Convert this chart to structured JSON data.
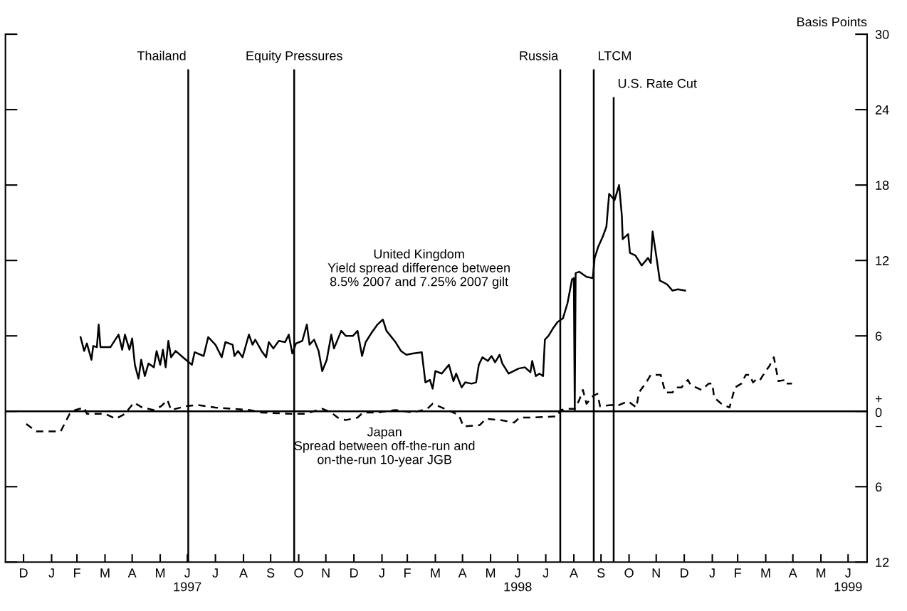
{
  "chart_data": {
    "type": "line",
    "ylabel": "Basis Points",
    "annotations": [
      "United Kingdom\nYield spread difference between\n8.5% 2007 and 7.25% 2007 gilt",
      "Japan\nSpread between off-the-run and\non-the-run 10-year JGB"
    ],
    "series": [
      {
        "color": "#000000",
        "line_style": "solid",
        "x": [
          "1997-03-05",
          "1997-03-09",
          "1997-03-12",
          "1997-03-17",
          "1997-03-19",
          "1997-03-23",
          "1997-03-25",
          "1997-03-27",
          "1997-04-07",
          "1997-04-16",
          "1997-04-20",
          "1997-04-23",
          "1997-04-28",
          "1997-05-01",
          "1997-05-04",
          "1997-05-08",
          "1997-05-11",
          "1997-05-15",
          "1997-05-19",
          "1997-05-25",
          "1997-05-28",
          "1997-06-01",
          "1997-06-04",
          "1997-06-07",
          "1997-06-10",
          "1997-06-13",
          "1997-06-18",
          "1997-06-26",
          "1997-07-06",
          "1997-07-09",
          "1997-07-19",
          "1997-07-24",
          "1997-08-01",
          "1997-08-08",
          "1997-08-12",
          "1997-08-20",
          "1997-08-22",
          "1997-08-26",
          "1997-08-31",
          "1997-09-07",
          "1997-09-11",
          "1997-09-14",
          "1997-09-21",
          "1997-09-26",
          "1997-09-29",
          "1997-10-04",
          "1997-10-10",
          "1997-10-17",
          "1997-10-21",
          "1997-10-25",
          "1997-10-29",
          "1997-11-05",
          "1997-11-10",
          "1997-11-13",
          "1997-11-18",
          "1997-11-23",
          "1997-11-27",
          "1997-12-02",
          "1997-12-07",
          "1997-12-10",
          "1997-12-18",
          "1997-12-23",
          "1997-12-31",
          "1998-01-05",
          "1998-01-10",
          "1998-01-14",
          "1998-01-21",
          "1998-01-27",
          "1998-02-02",
          "1998-02-06",
          "1998-02-16",
          "1998-02-22",
          "1998-02-28",
          "1998-03-07",
          "1998-03-17",
          "1998-03-21",
          "1998-03-26",
          "1998-03-29",
          "1998-04-01",
          "1998-04-08",
          "1998-04-16",
          "1998-04-21",
          "1998-04-24",
          "1998-04-30",
          "1998-05-04",
          "1998-05-11",
          "1998-05-16",
          "1998-05-19",
          "1998-05-23",
          "1998-05-29",
          "1998-06-02",
          "1998-06-06",
          "1998-06-11",
          "1998-06-14",
          "1998-06-21",
          "1998-07-02",
          "1998-07-09",
          "1998-07-15",
          "1998-07-17",
          "1998-07-21",
          "1998-07-25",
          "1998-07-29",
          "1998-07-31",
          "1998-08-04",
          "1998-08-09",
          "1998-08-14",
          "1998-08-20",
          "1998-08-25",
          "1998-08-30",
          "1998-09-01",
          "1998-09-02",
          "1998-09-03",
          "1998-09-07",
          "1998-09-15",
          "1998-09-22",
          "1998-09-24",
          "1998-09-28",
          "1998-10-03",
          "1998-10-07",
          "1998-10-10",
          "1998-10-16",
          "1998-10-21",
          "1998-10-24",
          "1998-10-25",
          "1998-10-31",
          "1998-11-02",
          "1998-11-08",
          "1998-11-15",
          "1998-11-22",
          "1998-11-25",
          "1998-11-27",
          "1998-12-01",
          "1998-12-05",
          "1998-12-13",
          "1998-12-19",
          "1998-12-25",
          "1999-01-02"
        ],
        "values": [
          5.9,
          4.8,
          5.4,
          4.1,
          5.2,
          5.1,
          6.9,
          5.1,
          5.1,
          6.1,
          4.9,
          6.1,
          4.9,
          5.8,
          3.7,
          2.6,
          4.1,
          2.8,
          3.8,
          3.5,
          4.8,
          3.7,
          4.9,
          3.5,
          5.6,
          4.3,
          4.8,
          4.3,
          3.7,
          4.7,
          4.4,
          5.9,
          5.3,
          4.3,
          5.5,
          5.3,
          4.4,
          4.8,
          4.3,
          6.1,
          5.3,
          5.7,
          4.8,
          4.3,
          5.5,
          5.0,
          5.6,
          5.5,
          6.1,
          4.6,
          5.4,
          5.6,
          6.9,
          5.3,
          5.7,
          4.8,
          3.2,
          4.1,
          6.1,
          5.0,
          6.4,
          6.0,
          6.0,
          6.4,
          4.4,
          5.5,
          6.3,
          6.9,
          7.3,
          6.4,
          5.5,
          4.8,
          4.5,
          4.6,
          4.7,
          2.3,
          2.5,
          1.8,
          3.2,
          3.0,
          3.7,
          2.4,
          3.0,
          1.9,
          2.3,
          2.2,
          2.3,
          3.7,
          4.3,
          4.0,
          4.4,
          3.9,
          4.5,
          3.8,
          3.0,
          3.4,
          3.5,
          3.1,
          4.0,
          2.8,
          3.0,
          2.8,
          5.7,
          6.0,
          6.6,
          7.1,
          7.4,
          8.6,
          10.5,
          10.6,
          0.1,
          11.0,
          11.1,
          10.7,
          10.6,
          12.2,
          13.1,
          13.9,
          14.7,
          17.3,
          16.8,
          18.0,
          15.6,
          13.7,
          14.1,
          12.6,
          12.4,
          11.6,
          12.2,
          11.8,
          14.3,
          12.4,
          10.4,
          10.1,
          9.6,
          9.7,
          9.6
        ]
      },
      {
        "color": "#000000",
        "line_style": "dashed",
        "x": [
          "1997-01-04",
          "1997-01-15",
          "1997-01-23",
          "1997-01-31",
          "1997-02-11",
          "1997-02-21",
          "1997-02-27",
          "1997-03-09",
          "1997-03-12",
          "1997-03-24",
          "1997-04-01",
          "1997-04-13",
          "1997-04-23",
          "1997-05-03",
          "1997-05-12",
          "1997-05-25",
          "1997-06-02",
          "1997-06-09",
          "1997-06-13",
          "1997-06-29",
          "1997-07-12",
          "1997-07-22",
          "1997-08-01",
          "1997-08-20",
          "1997-09-08",
          "1997-09-21",
          "1997-10-23",
          "1997-11-08",
          "1997-11-27",
          "1997-12-07",
          "1997-12-14",
          "1997-12-23",
          "1998-01-05",
          "1998-01-11",
          "1998-01-27",
          "1998-02-16",
          "1998-03-07",
          "1998-03-23",
          "1998-03-29",
          "1998-04-08",
          "1998-04-27",
          "1998-05-02",
          "1998-05-20",
          "1998-05-27",
          "1998-06-12",
          "1998-06-27",
          "1998-07-03",
          "1998-07-15",
          "1998-08-14",
          "1998-08-17",
          "1998-08-25",
          "1998-09-02",
          "1998-09-07",
          "1998-09-11",
          "1998-09-15",
          "1998-09-22",
          "1998-09-27",
          "1998-09-30",
          "1998-10-12",
          "1998-10-21",
          "1998-10-31",
          "1998-11-09",
          "1998-11-12",
          "1998-11-20",
          "1998-11-25",
          "1998-12-06",
          "1998-12-11",
          "1998-12-19",
          "1998-12-23",
          "1998-12-29",
          "1999-01-05",
          "1999-01-08",
          "1999-01-20",
          "1999-01-28",
          "1999-02-01",
          "1999-02-03",
          "1999-02-11",
          "1999-02-20",
          "1999-02-26",
          "1999-03-05",
          "1999-03-10",
          "1999-03-14",
          "1999-03-18",
          "1999-03-21",
          "1999-03-25",
          "1999-03-31",
          "1999-04-05",
          "1999-04-10",
          "1999-04-15",
          "1999-04-23",
          "1999-04-24",
          "1999-04-30"
        ],
        "values": [
          -1.0,
          -1.6,
          -1.6,
          -1.6,
          -1.6,
          -0.2,
          0.1,
          0.3,
          -0.2,
          -0.2,
          -0.2,
          -0.6,
          -0.2,
          0.7,
          0.3,
          0.1,
          0.4,
          0.9,
          0.1,
          0.4,
          0.5,
          0.4,
          0.3,
          0.2,
          0.1,
          -0.1,
          -0.2,
          -0.2,
          0.2,
          -0.1,
          -0.5,
          -0.7,
          -0.5,
          -0.1,
          -0.1,
          0.1,
          -0.1,
          0.2,
          0.6,
          0.3,
          -0.3,
          -1.2,
          -1.1,
          -0.6,
          -0.7,
          -0.9,
          -0.5,
          -0.5,
          -0.4,
          0.1,
          0.2,
          0.2,
          0.9,
          1.7,
          0.6,
          1.2,
          1.4,
          0.4,
          0.5,
          0.5,
          0.8,
          0.3,
          1.5,
          2.3,
          2.9,
          2.9,
          1.5,
          1.5,
          1.9,
          1.9,
          2.5,
          2.1,
          1.7,
          2.2,
          2.2,
          1.1,
          0.6,
          0.3,
          1.9,
          2.2,
          2.9,
          2.9,
          2.3,
          2.5,
          2.4,
          3.1,
          3.6,
          4.3,
          2.4,
          2.5,
          2.2,
          2.2
        ]
      }
    ],
    "xlim": [
      "1996-12-12",
      "1999-07-22"
    ],
    "xticks": [
      {
        "value": "1997-01-01",
        "label": "D"
      },
      {
        "value": "1997-02-01",
        "label": "J"
      },
      {
        "value": "1997-03-01",
        "label": "F"
      },
      {
        "value": "1997-04-01",
        "label": "M"
      },
      {
        "value": "1997-05-01",
        "label": "A"
      },
      {
        "value": "1997-06-01",
        "label": "M"
      },
      {
        "value": "1997-07-01",
        "label": "J\n1997"
      },
      {
        "value": "1997-08-01",
        "label": "J"
      },
      {
        "value": "1997-09-01",
        "label": "A"
      },
      {
        "value": "1997-10-01",
        "label": "S"
      },
      {
        "value": "1997-11-01",
        "label": "O"
      },
      {
        "value": "1997-12-01",
        "label": "N"
      },
      {
        "value": "1998-01-01",
        "label": "D"
      },
      {
        "value": "1998-02-01",
        "label": "J"
      },
      {
        "value": "1998-03-01",
        "label": "F"
      },
      {
        "value": "1998-04-01",
        "label": "M"
      },
      {
        "value": "1998-05-01",
        "label": "A"
      },
      {
        "value": "1998-06-01",
        "label": "M"
      },
      {
        "value": "1998-07-01",
        "label": "J\n1998"
      },
      {
        "value": "1998-08-01",
        "label": "J"
      },
      {
        "value": "1998-09-01",
        "label": "A"
      },
      {
        "value": "1998-10-01",
        "label": "S"
      },
      {
        "value": "1998-11-01",
        "label": "O"
      },
      {
        "value": "1998-12-01",
        "label": "N"
      },
      {
        "value": "1999-01-01",
        "label": "D"
      },
      {
        "value": "1999-02-01",
        "label": "J"
      },
      {
        "value": "1999-03-01",
        "label": "F"
      },
      {
        "value": "1999-04-01",
        "label": "M"
      },
      {
        "value": "1999-05-01",
        "label": "A"
      },
      {
        "value": "1999-06-01",
        "label": "M"
      },
      {
        "value": "1999-07-01",
        "label": "J\n1999"
      }
    ],
    "ylim": [
      -12,
      30
    ],
    "yticks": [
      {
        "value": -12,
        "label": "12"
      },
      {
        "value": -6,
        "label": "6"
      },
      {
        "value": 0,
        "label": "+\n0\n−"
      },
      6,
      12,
      18,
      24,
      30
    ],
    "ref_lines": [
      {
        "axis": "y",
        "value": 0,
        "color": "#000000"
      },
      {
        "axis": "x",
        "value": "1997-07-02",
        "label": "Thailand",
        "color": "#000000"
      },
      {
        "axis": "x",
        "value": "1997-10-27",
        "label": "Equity Pressures",
        "color": "#000000"
      },
      {
        "axis": "x",
        "value": "1998-08-17",
        "label": "Russia",
        "color": "#000000"
      },
      {
        "axis": "x",
        "value": "1998-09-23",
        "label": "LTCM",
        "color": "#000000"
      },
      {
        "axis": "x",
        "value": "1998-10-15",
        "label": "U.S. Rate Cut",
        "color": "#000000"
      }
    ],
    "grid": false
  }
}
